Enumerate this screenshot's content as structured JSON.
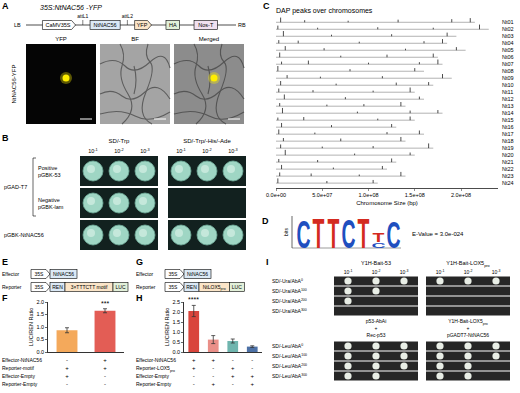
{
  "panels": {
    "A": {
      "letter": "A",
      "construct": {
        "title": "35S:NtNAC56 -YFP",
        "left_end": "LB",
        "right_end": "RB",
        "parts": [
          "CaMV35S",
          "NtNAC56",
          "YFP",
          "HA",
          "Nos-T"
        ],
        "sites": [
          {
            "text": "attL1",
            "after": 0
          },
          {
            "text": "attL2",
            "after": 1
          }
        ]
      },
      "images": {
        "row_label": "NtNAC56-YFP",
        "columns": [
          "YFP",
          "BF",
          "Merged"
        ]
      }
    },
    "B": {
      "letter": "B",
      "groups": [
        "SD/-Trp",
        "SD/-Trp/-His/-Ade"
      ],
      "dilutions": [
        {
          "text": "10",
          "sup": "-1"
        },
        {
          "text": "10",
          "sup": "-2"
        },
        {
          "text": "10",
          "sup": "-3"
        }
      ],
      "row_group": {
        "text": "pGAD-T7",
        "rows": [
          0,
          1
        ]
      },
      "rows": [
        {
          "label": [
            "Positive",
            "pGBK-53"
          ],
          "growth": [
            [
              1,
              1,
              1
            ],
            [
              1,
              1,
              1
            ]
          ]
        },
        {
          "label": [
            "Negative",
            "pGBK-lam"
          ],
          "growth": [
            [
              1,
              1,
              1
            ],
            [
              0,
              0,
              0
            ]
          ]
        },
        {
          "label": [
            "pGBK-NtNAC56"
          ],
          "growth": [
            [
              1,
              1,
              1
            ],
            [
              1,
              1,
              1
            ]
          ]
        }
      ]
    },
    "C": {
      "letter": "C"
    },
    "D": {
      "letter": "D",
      "axis_label": "bits",
      "evalue": "E-Value = 3.0e-024",
      "positions": [
        [
          {
            "letter": "C",
            "bits": 1.75
          }
        ],
        [
          {
            "letter": "T",
            "bits": 1.95
          }
        ],
        [
          {
            "letter": "T",
            "bits": 1.95
          }
        ],
        [
          {
            "letter": "C",
            "bits": 1.85
          }
        ],
        [
          {
            "letter": "T",
            "bits": 1.9
          }
        ],
        [
          {
            "letter": "C",
            "bits": 0.35
          },
          {
            "letter": "T",
            "bits": 0.55
          }
        ],
        [
          {
            "letter": "C",
            "bits": 1.7
          }
        ]
      ]
    },
    "E": {
      "letter": "E",
      "rows": [
        {
          "label": "Effector",
          "parts": [
            "35S",
            "NtNAC56"
          ]
        },
        {
          "label": "Reporter",
          "parts": [
            "35S",
            "REN",
            "3×TTTCTT motif",
            "LUC"
          ]
        }
      ]
    },
    "F": {
      "letter": "F",
      "conditions": [
        {
          "label": "Effector-NtNAC56",
          "marks": [
            "-",
            "+"
          ]
        },
        {
          "label": "Reporter-motif",
          "marks": [
            "+",
            "+"
          ]
        },
        {
          "label": "Effector-Empty",
          "marks": [
            "+",
            "-"
          ]
        },
        {
          "label": "Reporter-Empty",
          "marks": [
            "-",
            "-"
          ]
        }
      ]
    },
    "G": {
      "letter": "G",
      "rows": [
        {
          "label": "Effector",
          "parts": [
            "35S",
            "NtNAC56"
          ]
        },
        {
          "label": "Reporter",
          "parts": [
            "35S",
            "REN",
            {
              "text": "NtLOX5",
              "sub": "pro"
            },
            "LUC"
          ]
        }
      ]
    },
    "H": {
      "letter": "H",
      "conditions": [
        {
          "label": "Effector-NtNAC56",
          "marks": [
            "+",
            "+",
            "-",
            "-"
          ]
        },
        {
          "label": {
            "text": "Reporter-LOX5",
            "sub": "pro"
          },
          "marks": [
            "+",
            "-",
            "+",
            "-"
          ]
        },
        {
          "label": "Effector-Empty",
          "marks": [
            "-",
            "-",
            "+",
            "+"
          ]
        },
        {
          "label": "Reporter-Empty",
          "marks": [
            "-",
            "+",
            "-",
            "+"
          ]
        }
      ]
    },
    "I": {
      "letter": "I",
      "dilutions": [
        {
          "text": "10",
          "sup": "-1"
        },
        {
          "text": "10",
          "sup": "-2"
        },
        {
          "text": "10",
          "sup": "-3"
        }
      ],
      "columns": [
        {
          "header": "Y1H-Bait-53",
          "caption": [
            "p53-AbAi",
            "+",
            "Rec-p53"
          ]
        },
        {
          "header": {
            "text": "Y1H-Bait-LOX5",
            "sub": "pro"
          },
          "caption": [
            {
              "text": "Y1H-Bait-LOX5",
              "sub": "pro"
            },
            "+",
            "pGADT7-NtNAC56"
          ]
        }
      ],
      "sections": [
        {
          "rows": [
            {
              "label": {
                "text": "SD/-Ura/AbA",
                "sup": "0"
              },
              "growth": [
                [
                  1,
                  1,
                  1
                ],
                [
                  1,
                  1,
                  1
                ]
              ]
            },
            {
              "label": {
                "text": "SD/-Ura/AbA",
                "sup": "100"
              },
              "growth": [
                [
                  1,
                  1,
                  0
                ],
                [
                  0,
                  0,
                  0
                ]
              ]
            },
            {
              "label": {
                "text": "SD/-Ura/AbA",
                "sup": "200"
              },
              "growth": [
                [
                  1,
                  0,
                  0
                ],
                [
                  0,
                  0,
                  0
                ]
              ]
            },
            {
              "label": {
                "text": "SD/-Ura/AbA",
                "sup": "300"
              },
              "growth": [
                [
                  0,
                  0,
                  0
                ],
                [
                  0,
                  0,
                  0
                ]
              ]
            }
          ]
        },
        {
          "rows": [
            {
              "label": {
                "text": "SD/-Leu/AbA",
                "sup": "0"
              },
              "growth": [
                [
                  1,
                  1,
                  1
                ],
                [
                  1,
                  1,
                  1
                ]
              ]
            },
            {
              "label": {
                "text": "SD/-Leu/AbA",
                "sup": "100"
              },
              "growth": [
                [
                  1,
                  1,
                  1
                ],
                [
                  1,
                  1,
                  1
                ]
              ]
            },
            {
              "label": {
                "text": "SD/-Leu/AbA",
                "sup": "200"
              },
              "growth": [
                [
                  1,
                  1,
                  1
                ],
                [
                  1,
                  1,
                  0
                ]
              ]
            },
            {
              "label": {
                "text": "SD/-Leu/AbA",
                "sup": "300"
              },
              "growth": [
                [
                  1,
                  1,
                  0
                ],
                [
                  1,
                  1,
                  0
                ]
              ]
            }
          ]
        }
      ]
    }
  },
  "chart_data": [
    {
      "type": "peaks",
      "title": "DAP peaks over chromosomes",
      "x_label": "Chromosome Size (bp)",
      "categories": [
        "Nt01",
        "Nt02",
        "Nt03",
        "Nt04",
        "Nt05",
        "Nt06",
        "Nt07",
        "Nt08",
        "Nt09",
        "Nt10",
        "Nt11",
        "Nt12",
        "Nt13",
        "Nt14",
        "Nt15",
        "Nt16",
        "Nt17",
        "Nt18",
        "Nt19",
        "Nt20",
        "Nt21",
        "Nt22",
        "Nt23",
        "Nt24"
      ],
      "lengths": [
        215000000.0,
        230000000.0,
        195000000.0,
        185000000.0,
        205000000.0,
        175000000.0,
        180000000.0,
        160000000.0,
        190000000.0,
        170000000.0,
        150000000.0,
        160000000.0,
        140000000.0,
        180000000.0,
        150000000.0,
        130000000.0,
        160000000.0,
        140000000.0,
        170000000.0,
        150000000.0,
        130000000.0,
        120000000.0,
        140000000.0,
        110000000.0
      ],
      "peaks": [
        [
          [
            5000000.0,
            0.9
          ],
          [
            31000000.0,
            0.4
          ],
          [
            78000000.0,
            0.3
          ],
          [
            132000000.0,
            0.5
          ],
          [
            190000000.0,
            0.6
          ],
          [
            210000000.0,
            0.8
          ]
        ],
        [
          [
            2000000.0,
            0.7
          ],
          [
            45000000.0,
            0.3
          ],
          [
            110000000.0,
            0.4
          ],
          [
            170000000.0,
            0.3
          ],
          [
            220000000.0,
            0.9
          ]
        ],
        [
          [
            8000000.0,
            1.0
          ],
          [
            60000000.0,
            0.3
          ],
          [
            125000000.0,
            0.4
          ],
          [
            185000000.0,
            0.7
          ]
        ],
        [
          [
            3000000.0,
            0.6
          ],
          [
            24000000.0,
            0.5
          ],
          [
            90000000.0,
            0.3
          ],
          [
            160000000.0,
            0.4
          ],
          [
            180000000.0,
            0.8
          ]
        ],
        [
          [
            10000000.0,
            0.8
          ],
          [
            52000000.0,
            0.4
          ],
          [
            140000000.0,
            0.3
          ],
          [
            195000000.0,
            0.6
          ]
        ],
        [
          [
            4000000.0,
            0.9
          ],
          [
            70000000.0,
            0.3
          ],
          [
            120000000.0,
            0.5
          ],
          [
            170000000.0,
            0.7
          ]
        ],
        [
          [
            6000000.0,
            0.5
          ],
          [
            35000000.0,
            0.7
          ],
          [
            100000000.0,
            0.3
          ],
          [
            155000000.0,
            0.4
          ],
          [
            175000000.0,
            0.9
          ]
        ],
        [
          [
            2000000.0,
            1.0
          ],
          [
            80000000.0,
            0.4
          ],
          [
            150000000.0,
            0.6
          ]
        ],
        [
          [
            12000000.0,
            0.6
          ],
          [
            48000000.0,
            0.3
          ],
          [
            115000000.0,
            0.4
          ],
          [
            180000000.0,
            0.8
          ]
        ],
        [
          [
            5000000.0,
            0.8
          ],
          [
            65000000.0,
            0.3
          ],
          [
            130000000.0,
            0.5
          ],
          [
            165000000.0,
            0.6
          ]
        ],
        [
          [
            3000000.0,
            0.7
          ],
          [
            40000000.0,
            0.4
          ],
          [
            105000000.0,
            0.3
          ],
          [
            145000000.0,
            0.9
          ]
        ],
        [
          [
            9000000.0,
            0.9
          ],
          [
            75000000.0,
            0.4
          ],
          [
            155000000.0,
            0.5
          ]
        ],
        [
          [
            4000000.0,
            0.6
          ],
          [
            55000000.0,
            0.3
          ],
          [
            95000000.0,
            0.4
          ],
          [
            135000000.0,
            0.8
          ]
        ],
        [
          [
            7000000.0,
            1.0
          ],
          [
            88000000.0,
            0.3
          ],
          [
            145000000.0,
            0.5
          ],
          [
            175000000.0,
            0.6
          ]
        ],
        [
          [
            2000000.0,
            0.5
          ],
          [
            30000000.0,
            0.6
          ],
          [
            110000000.0,
            0.3
          ],
          [
            145000000.0,
            0.7
          ]
        ],
        [
          [
            6000000.0,
            0.8
          ],
          [
            60000000.0,
            0.4
          ],
          [
            125000000.0,
            0.6
          ]
        ],
        [
          [
            3000000.0,
            0.9
          ],
          [
            42000000.0,
            0.3
          ],
          [
            120000000.0,
            0.4
          ],
          [
            155000000.0,
            0.7
          ]
        ],
        [
          [
            8000000.0,
            0.6
          ],
          [
            70000000.0,
            0.5
          ],
          [
            135000000.0,
            0.8
          ]
        ],
        [
          [
            5000000.0,
            0.7
          ],
          [
            50000000.0,
            0.3
          ],
          [
            105000000.0,
            0.4
          ],
          [
            165000000.0,
            0.9
          ]
        ],
        [
          [
            10000000.0,
            1.0
          ],
          [
            85000000.0,
            0.3
          ],
          [
            145000000.0,
            0.5
          ]
        ],
        [
          [
            3000000.0,
            0.6
          ],
          [
            45000000.0,
            0.4
          ],
          [
            125000000.0,
            0.7
          ]
        ],
        [
          [
            6000000.0,
            0.8
          ],
          [
            62000000.0,
            0.3
          ],
          [
            115000000.0,
            0.6
          ]
        ],
        [
          [
            4000000.0,
            0.7
          ],
          [
            38000000.0,
            0.5
          ],
          [
            90000000.0,
            0.3
          ],
          [
            135000000.0,
            0.8
          ]
        ],
        [
          [
            2000000.0,
            0.9
          ],
          [
            55000000.0,
            0.4
          ],
          [
            105000000.0,
            0.6
          ]
        ]
      ],
      "xlim": [
        0,
        240000000
      ],
      "xticks": [
        {
          "value": 0,
          "label": "0.0e+00"
        },
        {
          "value": 50000000,
          "label": "5.0e+07"
        },
        {
          "value": 100000000,
          "label": "1.0e+08"
        },
        {
          "value": 150000000,
          "label": "1.5e+08"
        },
        {
          "value": 200000000,
          "label": "2.0e+08"
        }
      ],
      "tick_labels": "x",
      "grid": false,
      "color": "#000000"
    },
    {
      "type": "bar",
      "y_label": "LUC/REN Ratio",
      "categories": [
        null,
        null
      ],
      "values": [
        0.87,
        1.65
      ],
      "errors": [
        0.1,
        0.08
      ],
      "colors": [
        "#f4a95b",
        "#e35d55"
      ],
      "ylim": [
        0,
        2.0
      ],
      "yticks": [
        {
          "value": 0,
          "label": "0.0"
        },
        {
          "value": 0.5,
          "label": "0.5"
        },
        {
          "value": 1,
          "label": "1.0"
        },
        {
          "value": 1.5,
          "label": "1.5"
        },
        {
          "value": 2,
          "label": "2.0"
        }
      ],
      "annotations": [
        {
          "index": 1,
          "text": "***"
        }
      ],
      "tick_labels": "y",
      "grid": false
    },
    {
      "type": "bar",
      "y_label": "LUC/REN Ratio",
      "categories": [
        null,
        null,
        null,
        null
      ],
      "values": [
        2.05,
        0.62,
        0.55,
        0.27
      ],
      "errors": [
        0.28,
        0.2,
        0.1,
        0.04
      ],
      "colors": [
        "#d9453c",
        "#ea8f88",
        "#6fb5ae",
        "#4d71a6"
      ],
      "ylim": [
        0,
        2.5
      ],
      "yticks": [
        {
          "value": 0,
          "label": "0.0"
        },
        {
          "value": 0.5,
          "label": "0.5"
        },
        {
          "value": 1,
          "label": "1.0"
        },
        {
          "value": 1.5,
          "label": "1.5"
        },
        {
          "value": 2,
          "label": "2.0"
        },
        {
          "value": 2.5,
          "label": "2.5"
        }
      ],
      "annotations": [
        {
          "index": 0,
          "text": "****"
        }
      ],
      "tick_labels": "y",
      "grid": false
    }
  ]
}
